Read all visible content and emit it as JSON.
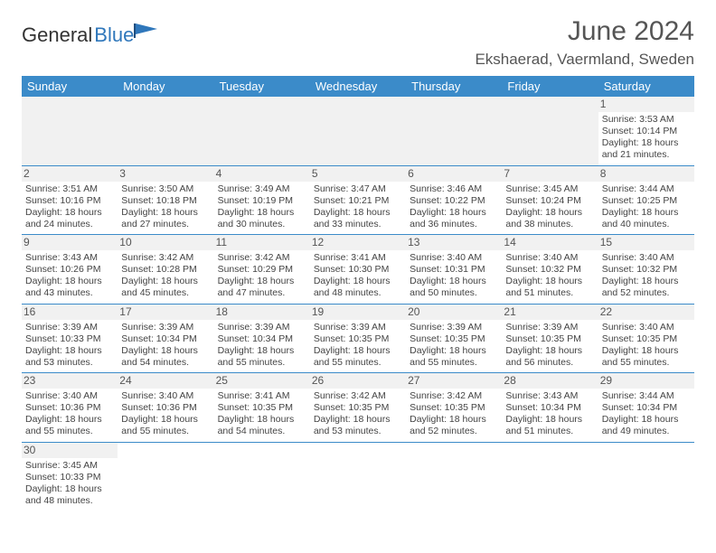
{
  "brand": {
    "name1": "General",
    "name2": "Blue"
  },
  "title": "June 2024",
  "location": "Ekshaerad, Vaermland, Sweden",
  "day_headers": [
    "Sunday",
    "Monday",
    "Tuesday",
    "Wednesday",
    "Thursday",
    "Friday",
    "Saturday"
  ],
  "colors": {
    "header_bg": "#3b8bc9",
    "header_fg": "#ffffff",
    "daynum_bg": "#f1f1f1",
    "border": "#3b8bc9",
    "text": "#444444"
  },
  "weeks": [
    [
      null,
      null,
      null,
      null,
      null,
      null,
      {
        "n": "1",
        "sunrise": "Sunrise: 3:53 AM",
        "sunset": "Sunset: 10:14 PM",
        "day1": "Daylight: 18 hours",
        "day2": "and 21 minutes."
      }
    ],
    [
      {
        "n": "2",
        "sunrise": "Sunrise: 3:51 AM",
        "sunset": "Sunset: 10:16 PM",
        "day1": "Daylight: 18 hours",
        "day2": "and 24 minutes."
      },
      {
        "n": "3",
        "sunrise": "Sunrise: 3:50 AM",
        "sunset": "Sunset: 10:18 PM",
        "day1": "Daylight: 18 hours",
        "day2": "and 27 minutes."
      },
      {
        "n": "4",
        "sunrise": "Sunrise: 3:49 AM",
        "sunset": "Sunset: 10:19 PM",
        "day1": "Daylight: 18 hours",
        "day2": "and 30 minutes."
      },
      {
        "n": "5",
        "sunrise": "Sunrise: 3:47 AM",
        "sunset": "Sunset: 10:21 PM",
        "day1": "Daylight: 18 hours",
        "day2": "and 33 minutes."
      },
      {
        "n": "6",
        "sunrise": "Sunrise: 3:46 AM",
        "sunset": "Sunset: 10:22 PM",
        "day1": "Daylight: 18 hours",
        "day2": "and 36 minutes."
      },
      {
        "n": "7",
        "sunrise": "Sunrise: 3:45 AM",
        "sunset": "Sunset: 10:24 PM",
        "day1": "Daylight: 18 hours",
        "day2": "and 38 minutes."
      },
      {
        "n": "8",
        "sunrise": "Sunrise: 3:44 AM",
        "sunset": "Sunset: 10:25 PM",
        "day1": "Daylight: 18 hours",
        "day2": "and 40 minutes."
      }
    ],
    [
      {
        "n": "9",
        "sunrise": "Sunrise: 3:43 AM",
        "sunset": "Sunset: 10:26 PM",
        "day1": "Daylight: 18 hours",
        "day2": "and 43 minutes."
      },
      {
        "n": "10",
        "sunrise": "Sunrise: 3:42 AM",
        "sunset": "Sunset: 10:28 PM",
        "day1": "Daylight: 18 hours",
        "day2": "and 45 minutes."
      },
      {
        "n": "11",
        "sunrise": "Sunrise: 3:42 AM",
        "sunset": "Sunset: 10:29 PM",
        "day1": "Daylight: 18 hours",
        "day2": "and 47 minutes."
      },
      {
        "n": "12",
        "sunrise": "Sunrise: 3:41 AM",
        "sunset": "Sunset: 10:30 PM",
        "day1": "Daylight: 18 hours",
        "day2": "and 48 minutes."
      },
      {
        "n": "13",
        "sunrise": "Sunrise: 3:40 AM",
        "sunset": "Sunset: 10:31 PM",
        "day1": "Daylight: 18 hours",
        "day2": "and 50 minutes."
      },
      {
        "n": "14",
        "sunrise": "Sunrise: 3:40 AM",
        "sunset": "Sunset: 10:32 PM",
        "day1": "Daylight: 18 hours",
        "day2": "and 51 minutes."
      },
      {
        "n": "15",
        "sunrise": "Sunrise: 3:40 AM",
        "sunset": "Sunset: 10:32 PM",
        "day1": "Daylight: 18 hours",
        "day2": "and 52 minutes."
      }
    ],
    [
      {
        "n": "16",
        "sunrise": "Sunrise: 3:39 AM",
        "sunset": "Sunset: 10:33 PM",
        "day1": "Daylight: 18 hours",
        "day2": "and 53 minutes."
      },
      {
        "n": "17",
        "sunrise": "Sunrise: 3:39 AM",
        "sunset": "Sunset: 10:34 PM",
        "day1": "Daylight: 18 hours",
        "day2": "and 54 minutes."
      },
      {
        "n": "18",
        "sunrise": "Sunrise: 3:39 AM",
        "sunset": "Sunset: 10:34 PM",
        "day1": "Daylight: 18 hours",
        "day2": "and 55 minutes."
      },
      {
        "n": "19",
        "sunrise": "Sunrise: 3:39 AM",
        "sunset": "Sunset: 10:35 PM",
        "day1": "Daylight: 18 hours",
        "day2": "and 55 minutes."
      },
      {
        "n": "20",
        "sunrise": "Sunrise: 3:39 AM",
        "sunset": "Sunset: 10:35 PM",
        "day1": "Daylight: 18 hours",
        "day2": "and 55 minutes."
      },
      {
        "n": "21",
        "sunrise": "Sunrise: 3:39 AM",
        "sunset": "Sunset: 10:35 PM",
        "day1": "Daylight: 18 hours",
        "day2": "and 56 minutes."
      },
      {
        "n": "22",
        "sunrise": "Sunrise: 3:40 AM",
        "sunset": "Sunset: 10:35 PM",
        "day1": "Daylight: 18 hours",
        "day2": "and 55 minutes."
      }
    ],
    [
      {
        "n": "23",
        "sunrise": "Sunrise: 3:40 AM",
        "sunset": "Sunset: 10:36 PM",
        "day1": "Daylight: 18 hours",
        "day2": "and 55 minutes."
      },
      {
        "n": "24",
        "sunrise": "Sunrise: 3:40 AM",
        "sunset": "Sunset: 10:36 PM",
        "day1": "Daylight: 18 hours",
        "day2": "and 55 minutes."
      },
      {
        "n": "25",
        "sunrise": "Sunrise: 3:41 AM",
        "sunset": "Sunset: 10:35 PM",
        "day1": "Daylight: 18 hours",
        "day2": "and 54 minutes."
      },
      {
        "n": "26",
        "sunrise": "Sunrise: 3:42 AM",
        "sunset": "Sunset: 10:35 PM",
        "day1": "Daylight: 18 hours",
        "day2": "and 53 minutes."
      },
      {
        "n": "27",
        "sunrise": "Sunrise: 3:42 AM",
        "sunset": "Sunset: 10:35 PM",
        "day1": "Daylight: 18 hours",
        "day2": "and 52 minutes."
      },
      {
        "n": "28",
        "sunrise": "Sunrise: 3:43 AM",
        "sunset": "Sunset: 10:34 PM",
        "day1": "Daylight: 18 hours",
        "day2": "and 51 minutes."
      },
      {
        "n": "29",
        "sunrise": "Sunrise: 3:44 AM",
        "sunset": "Sunset: 10:34 PM",
        "day1": "Daylight: 18 hours",
        "day2": "and 49 minutes."
      }
    ],
    [
      {
        "n": "30",
        "sunrise": "Sunrise: 3:45 AM",
        "sunset": "Sunset: 10:33 PM",
        "day1": "Daylight: 18 hours",
        "day2": "and 48 minutes."
      },
      null,
      null,
      null,
      null,
      null,
      null
    ]
  ]
}
